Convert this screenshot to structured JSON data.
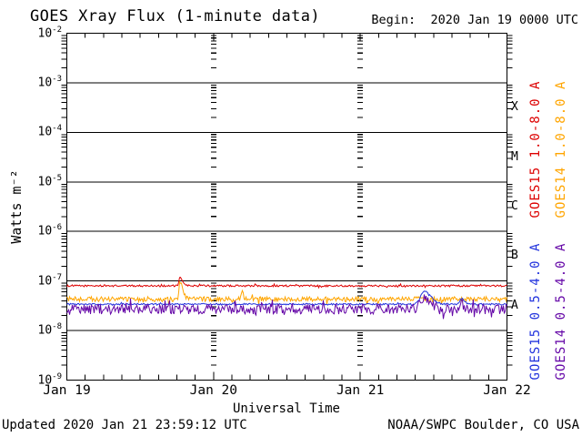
{
  "header": {
    "title": "GOES Xray Flux (1-minute data)",
    "begin_label": "Begin:  2020 Jan 19 0000 UTC"
  },
  "footer": {
    "updated": "Updated 2020 Jan 21 23:59:12 UTC",
    "source": "NOAA/SWPC Boulder, CO USA"
  },
  "chart_data": {
    "type": "line",
    "title": "GOES Xray Flux (1-minute data)",
    "xlabel": "Universal Time",
    "ylabel": "Watts m⁻²",
    "x_ticks": [
      "Jan 19",
      "Jan 20",
      "Jan 21",
      "Jan 22"
    ],
    "time_span_days": 3,
    "minor_x_ticks_hours": 3,
    "y_log_range": [
      -9,
      -2
    ],
    "y_tick_exponents": [
      -2,
      -3,
      -4,
      -5,
      -6,
      -7,
      -8,
      -9
    ],
    "grid": "horizontal solid decade lines, vertical log-dash columns at day boundaries",
    "flare_classes": [
      {
        "label": "X",
        "mid_decade": -3.5
      },
      {
        "label": "M",
        "mid_decade": -4.5
      },
      {
        "label": "C",
        "mid_decade": -5.5
      },
      {
        "label": "B",
        "mid_decade": -6.5
      },
      {
        "label": "A",
        "mid_decade": -7.5
      }
    ],
    "legend_position": "right-rotated",
    "series": [
      {
        "name": "GOES15 1.0-8.0 A",
        "color": "#dd0000",
        "baseline_wm2": 8e-08,
        "noise_log10": 0.018,
        "approx_daily_mean_wm2": [
          8e-08,
          7.8e-08,
          7.9e-08
        ],
        "events": [
          {
            "t_days": 0.77,
            "peak_wm2": 1.15e-07,
            "rise_d": 0.006,
            "decay_d": 0.02
          }
        ]
      },
      {
        "name": "GOES14 1.0-8.0 A",
        "color": "#ffa500",
        "baseline_wm2": 4.3e-08,
        "noise_log10": 0.05,
        "approx_daily_mean_wm2": [
          4.3e-08,
          4.2e-08,
          4.3e-08
        ],
        "events": [
          {
            "t_days": 0.77,
            "peak_wm2": 9e-08,
            "rise_d": 0.006,
            "decay_d": 0.02
          },
          {
            "t_days": 1.19,
            "peak_wm2": 6.2e-08,
            "rise_d": 0.004,
            "decay_d": 0.012
          }
        ]
      },
      {
        "name": "GOES15 0.5-4.0 A",
        "color": "#2233dd",
        "baseline_wm2": 3.4e-08,
        "noise_log10": 0.016,
        "approx_daily_mean_wm2": [
          3.4e-08,
          3.4e-08,
          3.7e-08
        ],
        "events": [
          {
            "t_days": 2.437,
            "peak_wm2": 6.2e-08,
            "rise_d": 0.025,
            "decay_d": 0.045
          },
          {
            "t_days": 2.69,
            "peak_wm2": 4.4e-08,
            "rise_d": 0.01,
            "decay_d": 0.02
          }
        ]
      },
      {
        "name": "GOES14 0.5-4.0 A",
        "color": "#6609a8",
        "baseline_wm2": 2.7e-08,
        "noise_log10": 0.1,
        "approx_daily_mean_wm2": [
          2.7e-08,
          2.7e-08,
          2.9e-08
        ],
        "events": [
          {
            "t_days": 2.437,
            "peak_wm2": 4.6e-08,
            "rise_d": 0.025,
            "decay_d": 0.045
          },
          {
            "t_days": 2.69,
            "peak_wm2": 3.4e-08,
            "rise_d": 0.01,
            "decay_d": 0.02
          }
        ]
      }
    ]
  }
}
